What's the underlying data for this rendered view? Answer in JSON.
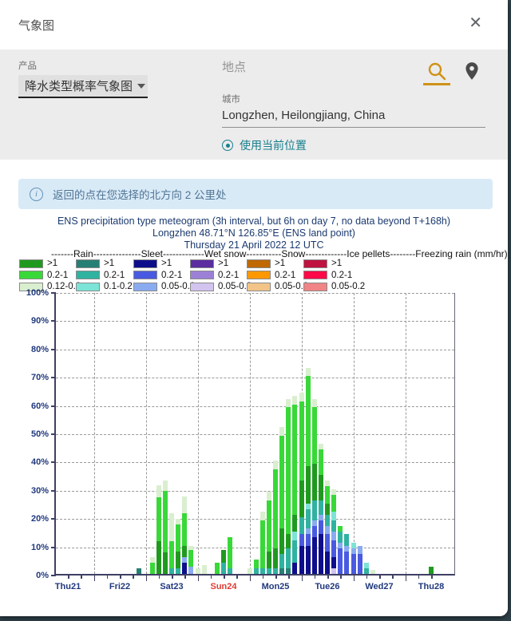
{
  "dialog": {
    "title": "气象图",
    "close_glyph": "✕"
  },
  "product": {
    "label": "产品",
    "value": "降水类型概率气象图"
  },
  "location": {
    "placeholder": "地点",
    "city_label": "城市",
    "city_value": "Longzhen, Heilongjiang, China",
    "use_current": "使用当前位置",
    "icons": {
      "search": "search-icon",
      "pin": "location-pin-icon",
      "target": "crosshair-icon"
    },
    "accent_amber": "#cf9216",
    "accent_teal": "#177f8e"
  },
  "banner": {
    "text": "返回的点在您选择的北方向 2 公里处"
  },
  "chart_data": {
    "type": "bar",
    "stacked": true,
    "title_lines": [
      "ENS precipitation type meteogram (3h interval, but 6h on day 7, no data beyond T+168h)",
      "Longzhen 48.71°N 126.85°E (ENS land point)",
      "Thursday 21 April 2022 12 UTC"
    ],
    "legend_header": "-------Rain---------------Sleet-------------Wet snow-----------Snow-------------Ice pellets--------Freezing rain (mm/hr)",
    "legend": [
      {
        "name": "Rain",
        "rows": [
          [
            "r1",
            ">1"
          ],
          [
            "r2",
            "0.2-1"
          ],
          [
            "r3",
            "0.12-0.2"
          ]
        ]
      },
      {
        "name": "Sleet",
        "rows": [
          [
            "s1",
            ">1"
          ],
          [
            "s2",
            "0.2-1"
          ],
          [
            "s3",
            "0.1-0.2"
          ]
        ]
      },
      {
        "name": "Wet snow",
        "rows": [
          [
            "w1",
            ">1"
          ],
          [
            "w2",
            "0.2-1"
          ],
          [
            "w3",
            "0.05-0.2"
          ]
        ]
      },
      {
        "name": "Snow",
        "rows": [
          [
            "n1",
            ">1"
          ],
          [
            "n2",
            "0.2-1"
          ],
          [
            "n3",
            "0.05-0.2"
          ]
        ]
      },
      {
        "name": "Ice pellets",
        "rows": [
          [
            "i1",
            ">1"
          ],
          [
            "i2",
            "0.2-1"
          ],
          [
            "i3",
            "0.05-0.2"
          ]
        ]
      },
      {
        "name": "Freezing rain",
        "rows": [
          [
            "f1",
            ">1"
          ],
          [
            "f2",
            "0.2-1"
          ],
          [
            "f3",
            "0.05-0.2"
          ]
        ]
      }
    ],
    "colors": {
      "r1": "#1f9a1f",
      "r2": "#38d838",
      "r3": "#d9efcf",
      "s1": "#267f74",
      "s2": "#30b2a1",
      "s3": "#7ce4d7",
      "w1": "#0e0e8c",
      "w2": "#4a5ae0",
      "w3": "#8aabf0",
      "n1": "#5b2da0",
      "n2": "#9b80d6",
      "n3": "#d2c4ef",
      "i1": "#bf6900",
      "i2": "#ff9800",
      "i3": "#f2c488",
      "f1": "#bf123f",
      "f2": "#ff0a48",
      "f3": "#f08486"
    },
    "ylim": [
      0,
      100
    ],
    "y_ticks": [
      "100%",
      "90%",
      "80%",
      "70%",
      "60%",
      "50%",
      "40%",
      "30%",
      "20%",
      "10%",
      "0%"
    ],
    "x_labels": [
      {
        "label": "Thu21",
        "red": false
      },
      {
        "label": "Fri22",
        "red": false
      },
      {
        "label": "Sat23",
        "red": false
      },
      {
        "label": "Sun24",
        "red": true
      },
      {
        "label": "Mon25",
        "red": false
      },
      {
        "label": "Tue26",
        "red": false
      },
      {
        "label": "Wed27",
        "red": false
      },
      {
        "label": "Thu28",
        "red": false
      }
    ],
    "grid": true,
    "legend_position": "top",
    "x_unit": "hours since Thursday 21 April 2022 12 UTC",
    "bars": [
      {
        "t": 33,
        "seg": [
          [
            "s1",
            2
          ]
        ]
      },
      {
        "t": 39,
        "seg": [
          [
            "r2",
            4
          ],
          [
            "r3",
            2
          ]
        ]
      },
      {
        "t": 42,
        "seg": [
          [
            "r1",
            11.5
          ],
          [
            "r2",
            15.5
          ],
          [
            "r3",
            4.5
          ]
        ]
      },
      {
        "t": 45,
        "seg": [
          [
            "r1",
            7.5
          ],
          [
            "r2",
            22
          ],
          [
            "r3",
            3.5
          ]
        ]
      },
      {
        "t": 48,
        "seg": [
          [
            "s2",
            2
          ],
          [
            "r2",
            9.5
          ],
          [
            "r3",
            10
          ]
        ]
      },
      {
        "t": 51,
        "seg": [
          [
            "s2",
            2
          ],
          [
            "r1",
            6
          ],
          [
            "r2",
            9.5
          ],
          [
            "r3",
            2
          ]
        ]
      },
      {
        "t": 54,
        "seg": [
          [
            "w1",
            4
          ],
          [
            "w3",
            2
          ],
          [
            "r1",
            4
          ],
          [
            "r2",
            11.5
          ],
          [
            "r3",
            6
          ]
        ]
      },
      {
        "t": 57,
        "seg": [
          [
            "w3",
            2.5
          ],
          [
            "r2",
            6
          ],
          [
            "r3",
            1.5
          ]
        ]
      },
      {
        "t": 60,
        "seg": [
          [
            "r3",
            2
          ]
        ]
      },
      {
        "t": 63,
        "seg": [
          [
            "r3",
            3
          ]
        ]
      },
      {
        "t": 69,
        "seg": [
          [
            "r2",
            4
          ]
        ]
      },
      {
        "t": 72,
        "seg": [
          [
            "s2",
            4
          ],
          [
            "r1",
            4.5
          ]
        ]
      },
      {
        "t": 75,
        "seg": [
          [
            "s2",
            2
          ],
          [
            "r2",
            11
          ]
        ]
      },
      {
        "t": 84,
        "seg": [
          [
            "r3",
            2
          ]
        ]
      },
      {
        "t": 87,
        "seg": [
          [
            "s2",
            2
          ],
          [
            "r2",
            3
          ]
        ]
      },
      {
        "t": 90,
        "seg": [
          [
            "s2",
            2
          ],
          [
            "r2",
            17
          ],
          [
            "r3",
            3
          ]
        ]
      },
      {
        "t": 93,
        "seg": [
          [
            "s2",
            2
          ],
          [
            "r1",
            6
          ],
          [
            "r2",
            18
          ],
          [
            "r3",
            3
          ]
        ]
      },
      {
        "t": 96,
        "seg": [
          [
            "s2",
            2
          ],
          [
            "r1",
            7
          ],
          [
            "r2",
            28
          ],
          [
            "r3",
            3
          ]
        ]
      },
      {
        "t": 99,
        "seg": [
          [
            "s1",
            2
          ],
          [
            "s2",
            5
          ],
          [
            "r1",
            9
          ],
          [
            "r2",
            33
          ],
          [
            "r3",
            3
          ]
        ]
      },
      {
        "t": 102,
        "seg": [
          [
            "s1",
            2
          ],
          [
            "s2",
            7
          ],
          [
            "r1",
            5
          ],
          [
            "r2",
            45
          ],
          [
            "r3",
            3
          ]
        ]
      },
      {
        "t": 105,
        "seg": [
          [
            "w1",
            4
          ],
          [
            "s2",
            8
          ],
          [
            "s3",
            3
          ],
          [
            "r1",
            6
          ],
          [
            "r2",
            39
          ],
          [
            "r3",
            3
          ]
        ]
      },
      {
        "t": 108,
        "seg": [
          [
            "w1",
            10
          ],
          [
            "w2",
            4
          ],
          [
            "s2",
            6
          ],
          [
            "r1",
            13
          ],
          [
            "r2",
            28
          ],
          [
            "r3",
            3
          ]
        ]
      },
      {
        "t": 111,
        "seg": [
          [
            "w1",
            10
          ],
          [
            "w2",
            4
          ],
          [
            "w3",
            2
          ],
          [
            "s2",
            7
          ],
          [
            "s3",
            2
          ],
          [
            "r1",
            13
          ],
          [
            "r2",
            32
          ],
          [
            "r3",
            3
          ]
        ]
      },
      {
        "t": 114,
        "seg": [
          [
            "w1",
            13
          ],
          [
            "w2",
            4
          ],
          [
            "w3",
            2
          ],
          [
            "s2",
            7
          ],
          [
            "r1",
            13
          ],
          [
            "r2",
            20
          ],
          [
            "r3",
            3
          ]
        ]
      },
      {
        "t": 117,
        "seg": [
          [
            "w1",
            14
          ],
          [
            "w2",
            5
          ],
          [
            "w3",
            2
          ],
          [
            "s2",
            5
          ],
          [
            "r1",
            9
          ],
          [
            "r2",
            9
          ],
          [
            "r3",
            2
          ]
        ]
      },
      {
        "t": 120,
        "seg": [
          [
            "w1",
            8
          ],
          [
            "w2",
            6
          ],
          [
            "w3",
            3
          ],
          [
            "s2",
            4
          ],
          [
            "r1",
            4
          ],
          [
            "r2",
            6
          ],
          [
            "r3",
            2
          ]
        ]
      },
      {
        "t": 123,
        "seg": [
          [
            "n3",
            2
          ],
          [
            "w1",
            4
          ],
          [
            "w2",
            6
          ],
          [
            "w3",
            3
          ],
          [
            "s2",
            4
          ],
          [
            "s3",
            3
          ],
          [
            "r2",
            6
          ],
          [
            "r3",
            2
          ]
        ]
      },
      {
        "t": 126,
        "seg": [
          [
            "w2",
            9
          ],
          [
            "w3",
            2
          ],
          [
            "s2",
            4
          ],
          [
            "r2",
            2
          ]
        ]
      },
      {
        "t": 129,
        "seg": [
          [
            "w2",
            8
          ],
          [
            "w3",
            2
          ],
          [
            "s2",
            4
          ]
        ]
      },
      {
        "t": 132,
        "seg": [
          [
            "w2",
            7
          ],
          [
            "w3",
            2
          ],
          [
            "s3",
            2
          ]
        ]
      },
      {
        "t": 135,
        "seg": [
          [
            "w2",
            7
          ],
          [
            "w3",
            3
          ]
        ]
      },
      {
        "t": 138,
        "seg": [
          [
            "s2",
            2
          ],
          [
            "s3",
            2
          ]
        ]
      },
      {
        "t": 141,
        "seg": [
          [
            "r3",
            1.5
          ]
        ]
      },
      {
        "t": 168,
        "seg": [
          [
            "r1",
            2.5
          ]
        ]
      }
    ]
  }
}
